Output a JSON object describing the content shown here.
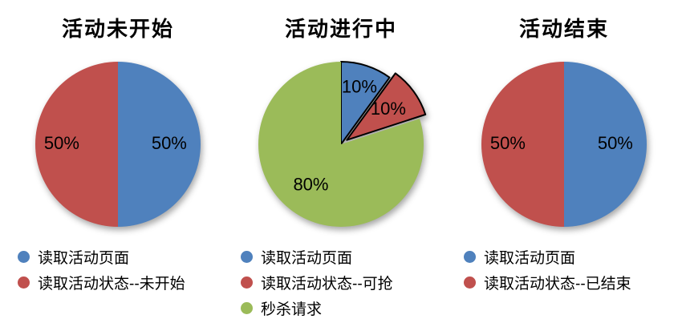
{
  "chart_data": [
    {
      "type": "pie",
      "title": "活动未开始",
      "start_angle": 0,
      "direction": "clockwise",
      "legend_position": "bottom",
      "slices": [
        {
          "label": "读取活动页面",
          "value": 50,
          "pct_label": "50%",
          "color": "#4F81BD",
          "label_r": 0.62
        },
        {
          "label": "读取活动状态--未开始",
          "value": 50,
          "pct_label": "50%",
          "color": "#C0504D",
          "label_r": 0.68
        }
      ]
    },
    {
      "type": "pie",
      "title": "活动进行中",
      "start_angle": 0,
      "direction": "clockwise",
      "legend_position": "bottom",
      "slices": [
        {
          "label": "读取活动页面",
          "value": 10,
          "pct_label": "10%",
          "color": "#4F81BD",
          "label_r": 0.72,
          "stroke": "#000000"
        },
        {
          "label": "读取活动状态--可抢",
          "value": 10,
          "pct_label": "10%",
          "color": "#C0504D",
          "label_r": 0.62,
          "stroke": "#000000",
          "explode": 9
        },
        {
          "label": "秒杀请求",
          "value": 80,
          "pct_label": "80%",
          "color": "#9BBB59",
          "label_r": 0.62
        }
      ]
    },
    {
      "type": "pie",
      "title": "活动结束",
      "start_angle": 0,
      "direction": "clockwise",
      "legend_position": "bottom",
      "slices": [
        {
          "label": "读取活动页面",
          "value": 50,
          "pct_label": "50%",
          "color": "#4F81BD",
          "label_r": 0.62
        },
        {
          "label": "读取活动状态--已结束",
          "value": 50,
          "pct_label": "50%",
          "color": "#C0504D",
          "label_r": 0.68
        }
      ]
    }
  ]
}
